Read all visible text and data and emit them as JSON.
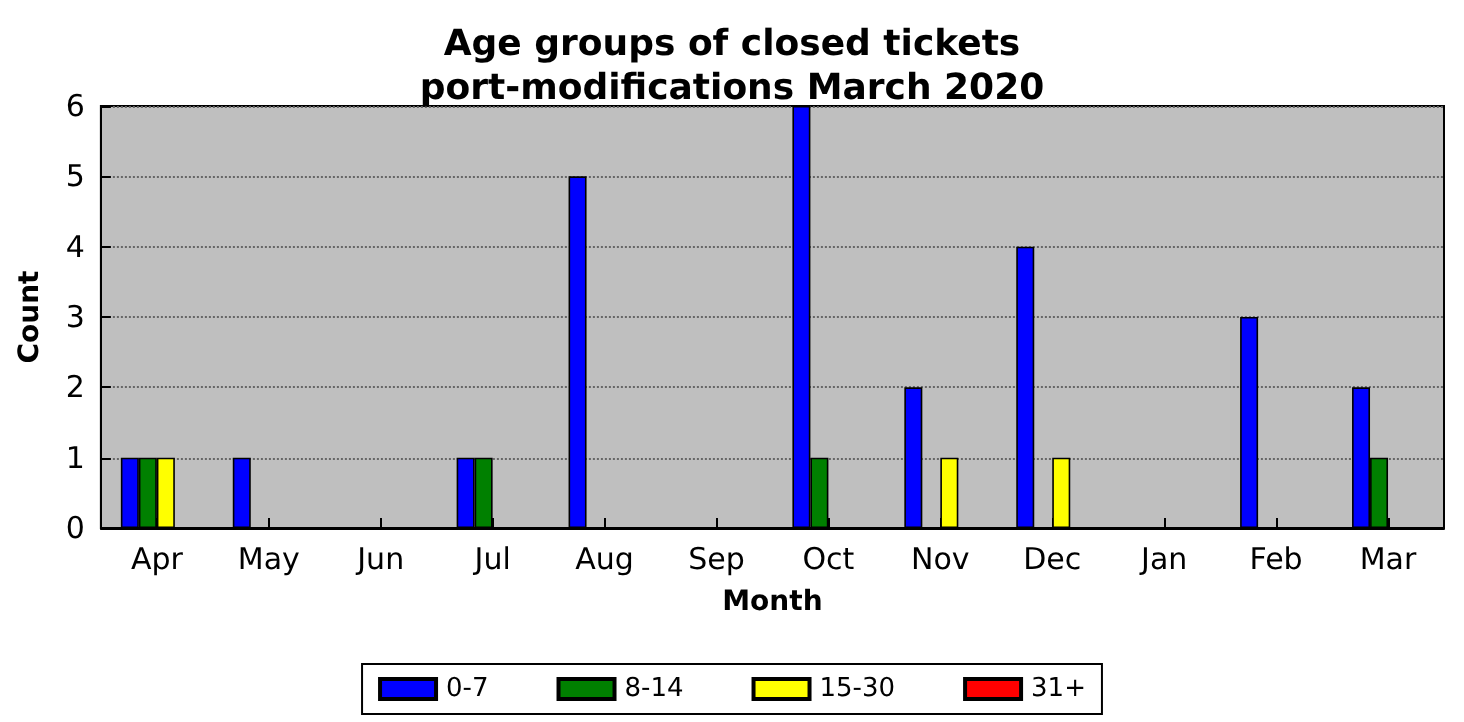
{
  "chart_data": {
    "type": "bar",
    "title": "Age groups of closed tickets\nport-modifications March 2020",
    "xlabel": "Month",
    "ylabel": "Count",
    "categories": [
      "Apr",
      "May",
      "Jun",
      "Jul",
      "Aug",
      "Sep",
      "Oct",
      "Nov",
      "Dec",
      "Jan",
      "Feb",
      "Mar"
    ],
    "series": [
      {
        "name": "0-7",
        "color": "#0000ff",
        "values": [
          1,
          1,
          0,
          1,
          5,
          0,
          6,
          2,
          4,
          0,
          3,
          2
        ]
      },
      {
        "name": "8-14",
        "color": "#008000",
        "values": [
          1,
          0,
          0,
          1,
          0,
          0,
          1,
          0,
          0,
          0,
          0,
          1
        ]
      },
      {
        "name": "15-30",
        "color": "#ffff00",
        "values": [
          1,
          0,
          0,
          0,
          0,
          0,
          0,
          1,
          1,
          0,
          0,
          0
        ]
      },
      {
        "name": "31+",
        "color": "#ff0000",
        "values": [
          0,
          0,
          0,
          0,
          0,
          0,
          0,
          0,
          0,
          0,
          0,
          0
        ]
      }
    ],
    "ylim": [
      0,
      6
    ],
    "yticks": [
      0,
      1,
      2,
      3,
      4,
      5,
      6
    ],
    "grid": "y",
    "legend": "bottom"
  }
}
